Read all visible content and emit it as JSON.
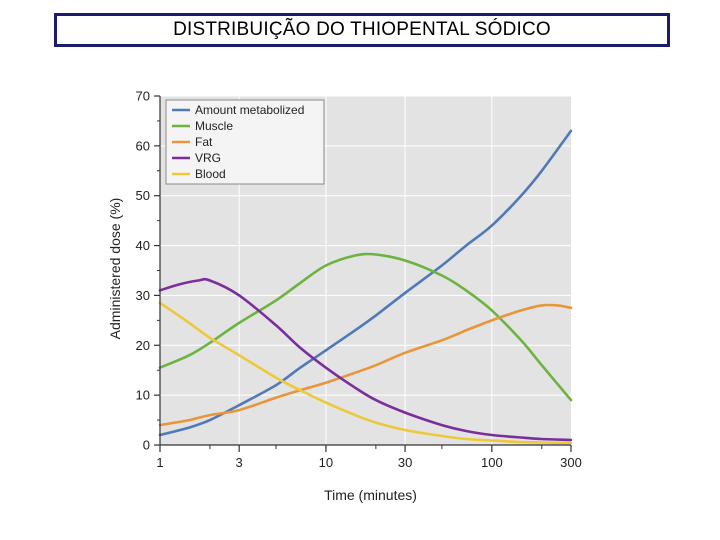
{
  "header": {
    "title": "DISTRIBUIÇÃO DO THIOPENTAL SÓDICO"
  },
  "chart_data": {
    "type": "line",
    "title": "",
    "xlabel": "Time (minutes)",
    "ylabel": "Administered dose (%)",
    "x_scale": "log",
    "xlim": [
      1,
      300
    ],
    "ylim": [
      0,
      70
    ],
    "x_ticks": [
      1,
      3,
      10,
      30,
      100,
      300
    ],
    "x_tick_labels": [
      "1",
      "3",
      "10",
      "30",
      "100",
      "300"
    ],
    "y_ticks": [
      0,
      10,
      20,
      30,
      40,
      50,
      60,
      70
    ],
    "y_tick_labels": [
      "0",
      "10",
      "20",
      "30",
      "40",
      "50",
      "60",
      "70"
    ],
    "grid": true,
    "legend_position": "top-left",
    "background_color": "#e3e3e3",
    "series": [
      {
        "name": "Amount metabolized",
        "color": "#4f79b8",
        "x": [
          1,
          1.5,
          2,
          3,
          5,
          7,
          10,
          15,
          20,
          30,
          50,
          70,
          100,
          150,
          200,
          300
        ],
        "y": [
          2,
          3.5,
          5,
          8,
          12,
          15.5,
          19,
          23,
          26,
          30.5,
          36,
          40,
          44,
          50,
          55,
          63
        ]
      },
      {
        "name": "Muscle",
        "color": "#6cb33f",
        "x": [
          1,
          1.5,
          2,
          3,
          5,
          7,
          10,
          15,
          20,
          30,
          50,
          70,
          100,
          150,
          200,
          300
        ],
        "y": [
          15.5,
          18,
          20.5,
          24.5,
          29,
          32.5,
          36,
          38,
          38.2,
          37,
          34,
          31,
          27,
          21,
          16,
          9
        ]
      },
      {
        "name": "Fat",
        "color": "#e8963a",
        "x": [
          1,
          1.5,
          2,
          3,
          5,
          7,
          10,
          15,
          20,
          30,
          50,
          70,
          100,
          150,
          200,
          250,
          300
        ],
        "y": [
          4,
          5,
          6,
          7,
          9.5,
          11,
          12.5,
          14.5,
          16,
          18.5,
          21,
          23,
          25,
          27,
          28,
          28,
          27.5
        ]
      },
      {
        "name": "VRG",
        "color": "#7a2e9c",
        "x": [
          1,
          1.3,
          1.7,
          2,
          3,
          5,
          7,
          10,
          15,
          20,
          30,
          50,
          70,
          100,
          150,
          200,
          300
        ],
        "y": [
          31,
          32.2,
          33,
          33,
          30,
          24,
          19.5,
          15.5,
          11.5,
          9,
          6.5,
          4,
          2.8,
          2,
          1.5,
          1.2,
          1
        ]
      },
      {
        "name": "Blood",
        "color": "#ecc93a",
        "x": [
          1,
          1.5,
          2,
          3,
          5,
          7,
          10,
          15,
          20,
          30,
          50,
          70,
          100,
          150,
          200,
          300
        ],
        "y": [
          28.5,
          24.5,
          21.5,
          18,
          13.5,
          11,
          8.5,
          6,
          4.5,
          3,
          1.8,
          1.2,
          0.9,
          0.6,
          0.5,
          0.4
        ]
      }
    ]
  }
}
